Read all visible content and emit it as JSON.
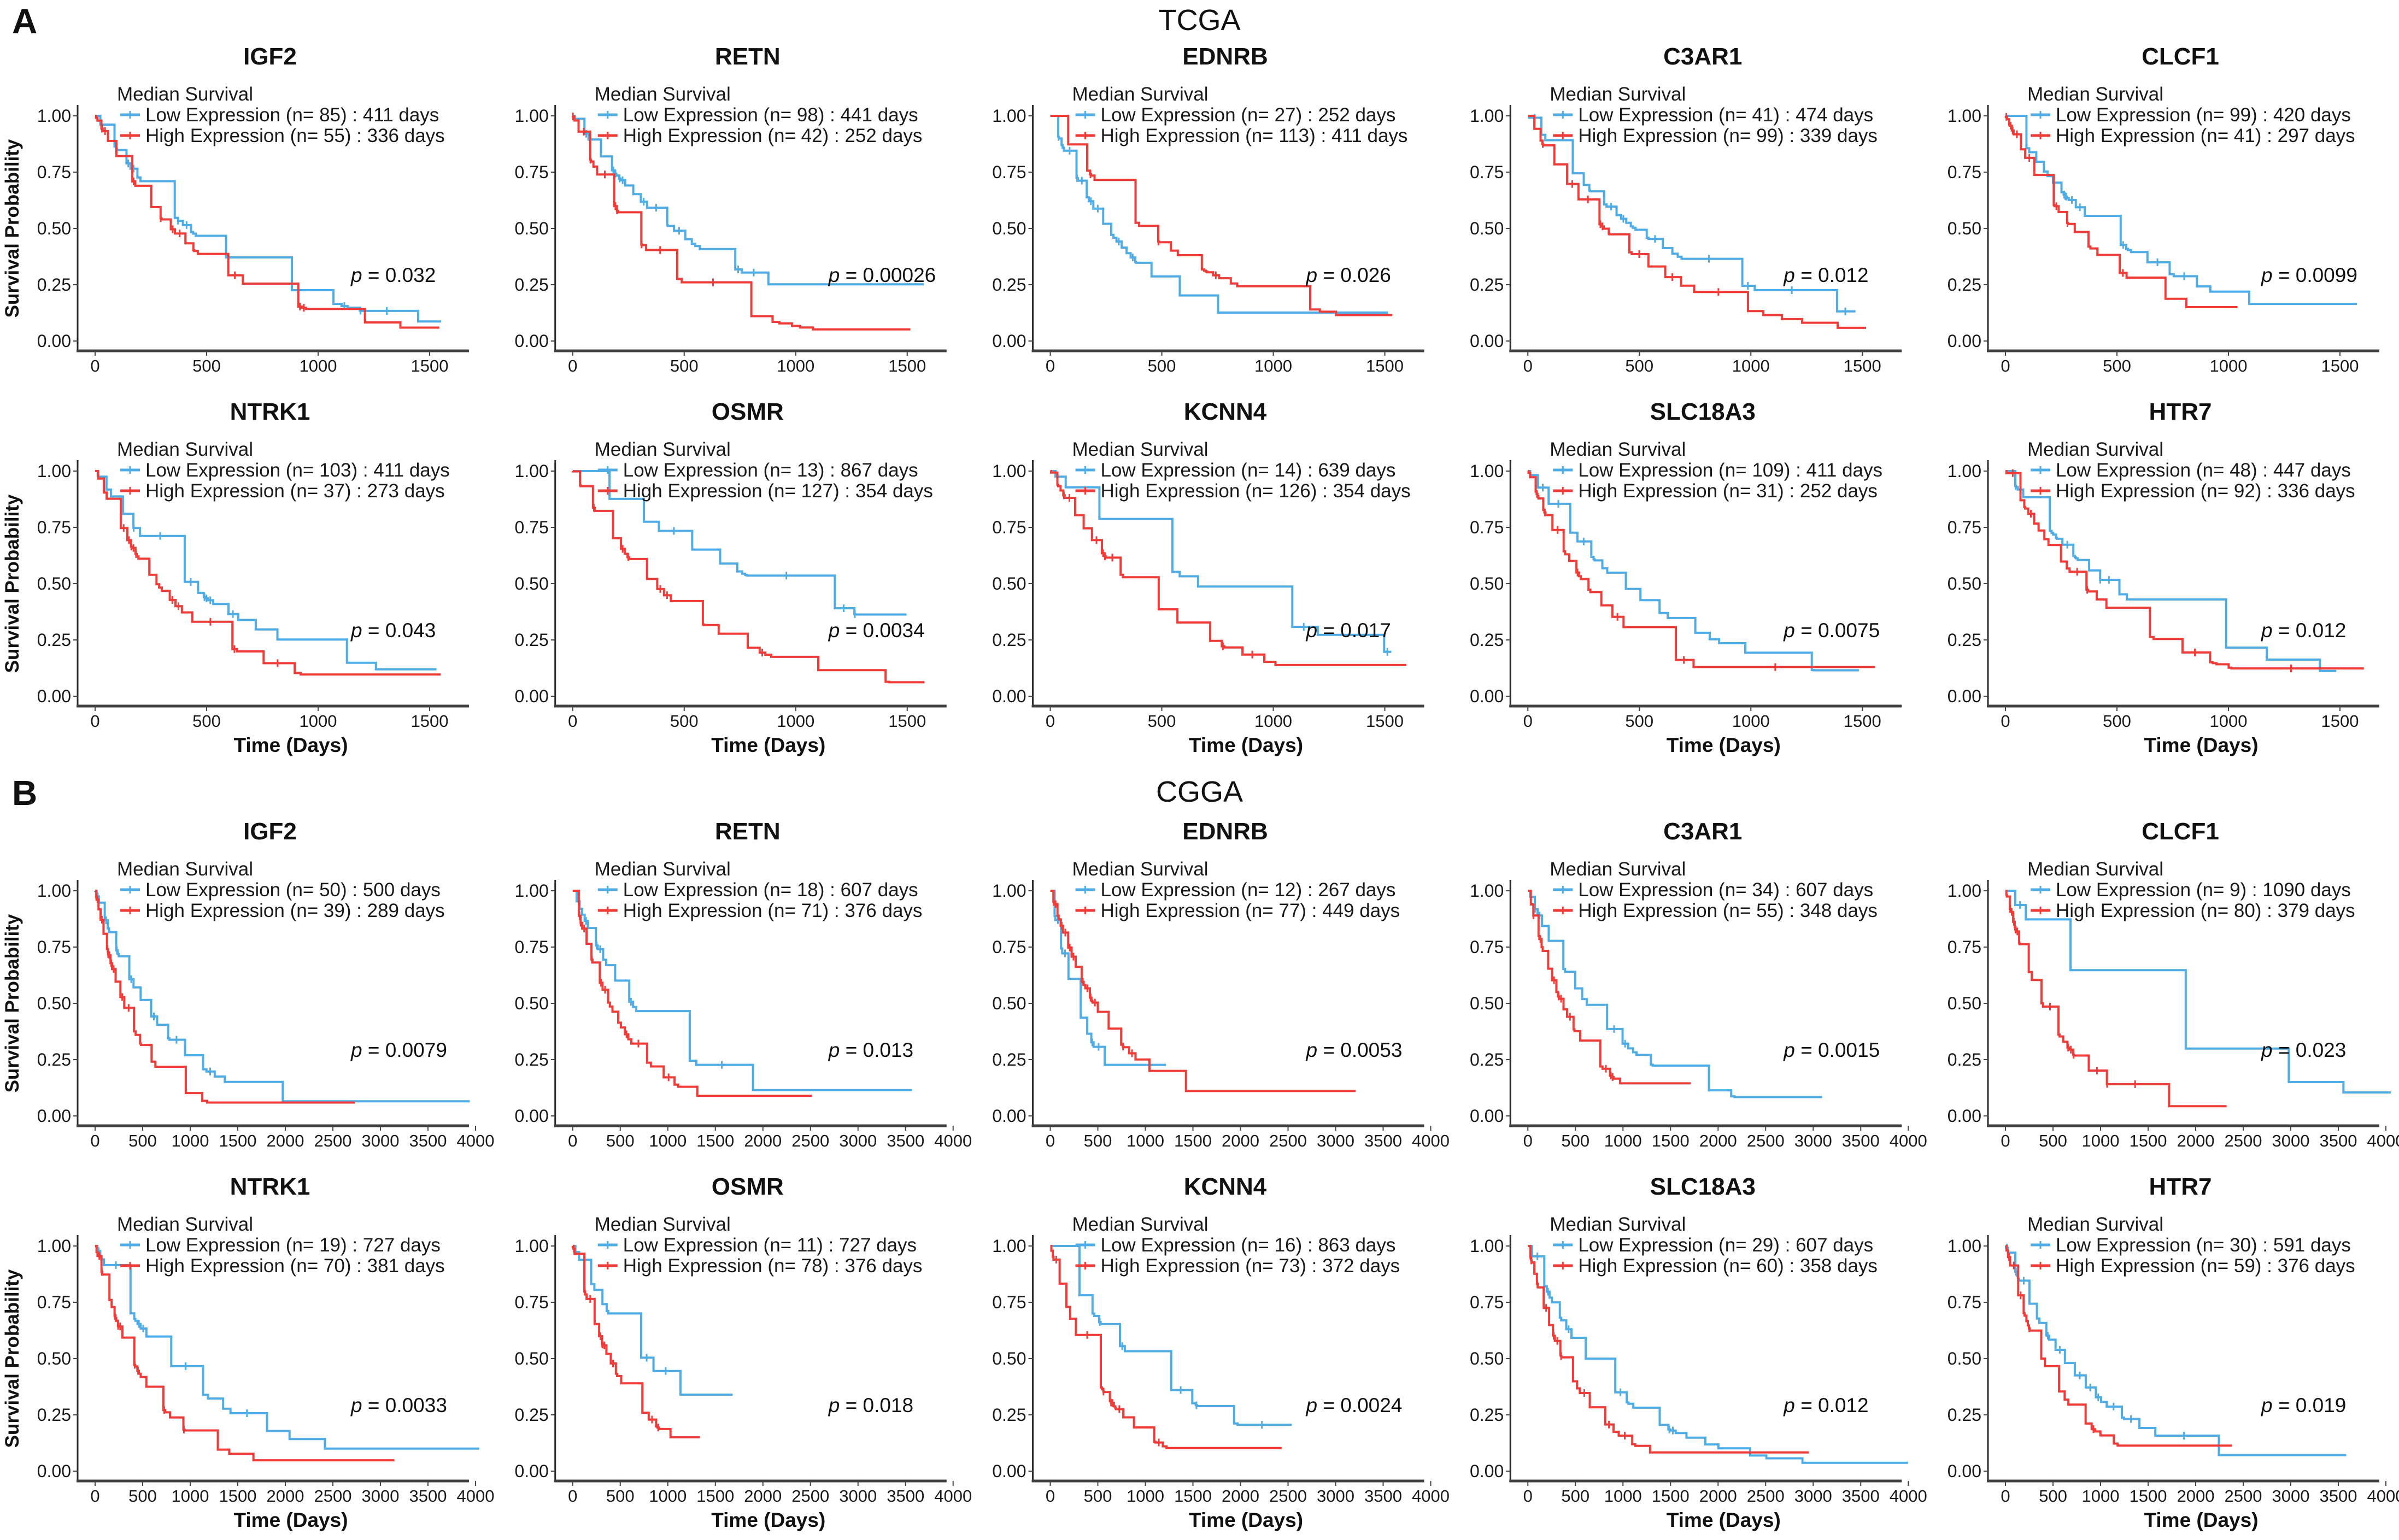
{
  "y_axis": {
    "label": "Survival Probability",
    "ticks": [
      "1.00",
      "0.75",
      "0.50",
      "0.25",
      "0.00"
    ]
  },
  "legend": {
    "title": "Median Survival",
    "low_template": "Low Expression (n= {n}) : {median} days",
    "high_template": "High Expression (n= {n}) : {median} days"
  },
  "colors": {
    "low": "#4FACE4",
    "high": "#EF3C38",
    "spine": "#2b2b2b",
    "axis_line": "#404040",
    "tick": "#444444"
  },
  "chart_data": {
    "type": "line",
    "subtype": "kaplan-meier-step",
    "series_legend": [
      "Low Expression",
      "High Expression"
    ],
    "y_range": [
      0,
      1
    ],
    "grid": false,
    "panels": [
      {
        "label": "A",
        "cohort": "TCGA",
        "time_axis": {
          "label": "Time (Days)",
          "ticks": [
            0,
            500,
            1000,
            1500
          ],
          "max_days": 1620
        },
        "plots": [
          {
            "gene": "IGF2",
            "p_text": "p = 0.032",
            "low": {
              "n": 85,
              "median_days": 411
            },
            "high": {
              "n": 55,
              "median_days": 336
            }
          },
          {
            "gene": "RETN",
            "p_text": "p = 0.00026",
            "low": {
              "n": 98,
              "median_days": 441
            },
            "high": {
              "n": 42,
              "median_days": 252
            }
          },
          {
            "gene": "EDNRB",
            "p_text": "p = 0.026",
            "low": {
              "n": 27,
              "median_days": 252
            },
            "high": {
              "n": 113,
              "median_days": 411
            }
          },
          {
            "gene": "C3AR1",
            "p_text": "p = 0.012",
            "low": {
              "n": 41,
              "median_days": 474
            },
            "high": {
              "n": 99,
              "median_days": 339
            }
          },
          {
            "gene": "CLCF1",
            "p_text": "p = 0.0099",
            "low": {
              "n": 99,
              "median_days": 420
            },
            "high": {
              "n": 41,
              "median_days": 297
            }
          },
          {
            "gene": "NTRK1",
            "p_text": "p = 0.043",
            "low": {
              "n": 103,
              "median_days": 411
            },
            "high": {
              "n": 37,
              "median_days": 273
            }
          },
          {
            "gene": "OSMR",
            "p_text": "p = 0.0034",
            "low": {
              "n": 13,
              "median_days": 867
            },
            "high": {
              "n": 127,
              "median_days": 354
            }
          },
          {
            "gene": "KCNN4",
            "p_text": "p = 0.017",
            "low": {
              "n": 14,
              "median_days": 639
            },
            "high": {
              "n": 126,
              "median_days": 354
            }
          },
          {
            "gene": "SLC18A3",
            "p_text": "p = 0.0075",
            "low": {
              "n": 109,
              "median_days": 411
            },
            "high": {
              "n": 31,
              "median_days": 252
            }
          },
          {
            "gene": "HTR7",
            "p_text": "p = 0.012",
            "low": {
              "n": 48,
              "median_days": 447
            },
            "high": {
              "n": 92,
              "median_days": 336
            }
          }
        ]
      },
      {
        "label": "B",
        "cohort": "CGGA",
        "time_axis": {
          "label": "Time (Days)",
          "ticks": [
            0,
            500,
            1000,
            1500,
            2000,
            2500,
            3000,
            3500,
            4000
          ],
          "max_days": 4150
        },
        "plots": [
          {
            "gene": "IGF2",
            "p_text": "p = 0.0079",
            "low": {
              "n": 50,
              "median_days": 500
            },
            "high": {
              "n": 39,
              "median_days": 289
            }
          },
          {
            "gene": "RETN",
            "p_text": "p = 0.013",
            "low": {
              "n": 18,
              "median_days": 607
            },
            "high": {
              "n": 71,
              "median_days": 376
            }
          },
          {
            "gene": "EDNRB",
            "p_text": "p = 0.0053",
            "low": {
              "n": 12,
              "median_days": 267
            },
            "high": {
              "n": 77,
              "median_days": 449
            }
          },
          {
            "gene": "C3AR1",
            "p_text": "p = 0.0015",
            "low": {
              "n": 34,
              "median_days": 607
            },
            "high": {
              "n": 55,
              "median_days": 348
            }
          },
          {
            "gene": "CLCF1",
            "p_text": "p = 0.023",
            "low": {
              "n": 9,
              "median_days": 1090
            },
            "high": {
              "n": 80,
              "median_days": 379
            }
          },
          {
            "gene": "NTRK1",
            "p_text": "p = 0.0033",
            "low": {
              "n": 19,
              "median_days": 727
            },
            "high": {
              "n": 70,
              "median_days": 381
            }
          },
          {
            "gene": "OSMR",
            "p_text": "p = 0.018",
            "low": {
              "n": 11,
              "median_days": 727
            },
            "high": {
              "n": 78,
              "median_days": 376
            }
          },
          {
            "gene": "KCNN4",
            "p_text": "p = 0.0024",
            "low": {
              "n": 16,
              "median_days": 863
            },
            "high": {
              "n": 73,
              "median_days": 372
            }
          },
          {
            "gene": "SLC18A3",
            "p_text": "p = 0.012",
            "low": {
              "n": 29,
              "median_days": 607
            },
            "high": {
              "n": 60,
              "median_days": 358
            }
          },
          {
            "gene": "HTR7",
            "p_text": "p = 0.019",
            "low": {
              "n": 30,
              "median_days": 591
            },
            "high": {
              "n": 59,
              "median_days": 376
            }
          }
        ]
      }
    ]
  }
}
